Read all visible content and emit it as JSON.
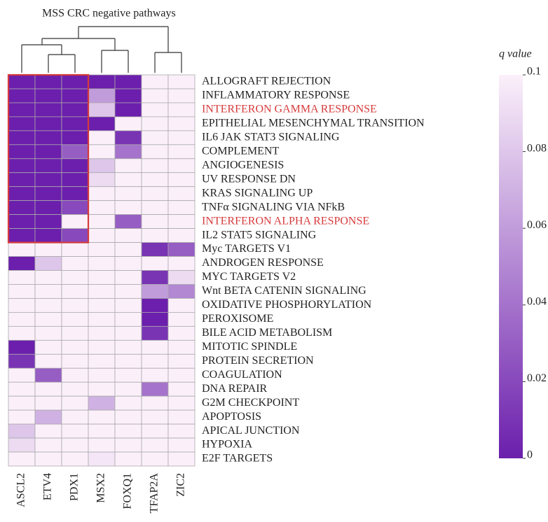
{
  "chart_data": {
    "type": "heatmap",
    "title": "MSS CRC negative pathways",
    "colorbar_label": "q value",
    "columns": [
      "ASCL2",
      "ETV4",
      "PDX1",
      "MSX2",
      "FOXQ1",
      "TFAP2A",
      "ZIC2"
    ],
    "rows": [
      "ALLOGRAFT REJECTION",
      "INFLAMMATORY RESPONSE",
      "INTERFERON GAMMA RESPONSE",
      "EPITHELIAL MESENCHYMAL TRANSITION",
      "IL6 JAK STAT3 SIGNALING",
      "COMPLEMENT",
      "ANGIOGENESIS",
      "UV RESPONSE DN",
      "KRAS SIGNALING UP",
      "TNFα SIGNALING VIA NFkB",
      "INTERFERON ALPHA RESPONSE",
      "IL2 STAT5 SIGNALING",
      "Myc TARGETS V1",
      "ANDROGEN RESPONSE",
      "MYC TARGETS V2",
      "Wnt BETA CATENIN SIGNALING",
      "OXIDATIVE PHOSPHORYLATION",
      "PEROXISOME",
      "BILE ACID METABOLISM",
      "MITOTIC SPINDLE",
      "PROTEIN SECRETION",
      "COAGULATION",
      "DNA REPAIR",
      "G2M CHECKPOINT",
      "APOPTOSIS",
      "APICAL JUNCTION",
      "HYPOXIA",
      "E2F TARGETS"
    ],
    "values": [
      [
        0,
        0,
        0,
        0,
        0,
        0.1,
        0.1
      ],
      [
        0,
        0,
        0,
        0.06,
        0,
        0.1,
        0.1
      ],
      [
        0,
        0,
        0,
        0.08,
        0,
        0.1,
        0.1
      ],
      [
        0,
        0,
        0,
        0,
        0.1,
        0.1,
        0.1
      ],
      [
        0,
        0,
        0,
        0.1,
        0.01,
        0.1,
        0.1
      ],
      [
        0,
        0,
        0.03,
        0.1,
        0.04,
        0.1,
        0.1
      ],
      [
        0,
        0,
        0,
        0.08,
        0.1,
        0.1,
        0.1
      ],
      [
        0,
        0,
        0,
        0.09,
        0.1,
        0.1,
        0.1
      ],
      [
        0,
        0,
        0,
        0.1,
        0.1,
        0.1,
        0.1
      ],
      [
        0,
        0,
        0.02,
        0.1,
        0.1,
        0.1,
        0.1
      ],
      [
        0,
        0,
        0.1,
        0.1,
        0.03,
        0.1,
        0.1
      ],
      [
        0,
        0,
        0.02,
        0.1,
        0.1,
        0.1,
        0.1
      ],
      [
        0.1,
        0.1,
        0.1,
        0.1,
        0.1,
        0.01,
        0.03
      ],
      [
        0,
        0.08,
        0.1,
        0.1,
        0.1,
        0.1,
        0.1
      ],
      [
        0.1,
        0.1,
        0.1,
        0.1,
        0.1,
        0.01,
        0.09
      ],
      [
        0.1,
        0.1,
        0.1,
        0.1,
        0.1,
        0.06,
        0.05
      ],
      [
        0.1,
        0.1,
        0.1,
        0.1,
        0.1,
        0,
        0.1
      ],
      [
        0.1,
        0.1,
        0.1,
        0.1,
        0.1,
        0,
        0.1
      ],
      [
        0.1,
        0.1,
        0.1,
        0.1,
        0.1,
        0.01,
        0.1
      ],
      [
        0,
        0.1,
        0.1,
        0.1,
        0.1,
        0.1,
        0.1
      ],
      [
        0.01,
        0.1,
        0.1,
        0.1,
        0.1,
        0.1,
        0.1
      ],
      [
        0.1,
        0.03,
        0.1,
        0.1,
        0.1,
        0.1,
        0.1
      ],
      [
        0.1,
        0.1,
        0.1,
        0.1,
        0.1,
        0.04,
        0.1
      ],
      [
        0.1,
        0.1,
        0.1,
        0.07,
        0.1,
        0.1,
        0.1
      ],
      [
        0.1,
        0.07,
        0.1,
        0.1,
        0.1,
        0.1,
        0.1
      ],
      [
        0.08,
        0.1,
        0.1,
        0.1,
        0.1,
        0.1,
        0.1
      ],
      [
        0.09,
        0.1,
        0.1,
        0.1,
        0.1,
        0.1,
        0.1
      ],
      [
        0.1,
        0.1,
        0.1,
        0.095,
        0.1,
        0.1,
        0.1
      ]
    ],
    "colors": [
      "#6b1fac",
      "#fbf0fa"
    ],
    "clim": [
      0,
      0.1
    ],
    "cticks": [
      0,
      0.02,
      0.04,
      0.06,
      0.08,
      0.1
    ],
    "highlight": {
      "rows": [
        2,
        10
      ],
      "color": "#d63b3b"
    },
    "box": {
      "rows": [
        0,
        11
      ],
      "cols": [
        0,
        2
      ],
      "color": "#d63b3b"
    }
  }
}
